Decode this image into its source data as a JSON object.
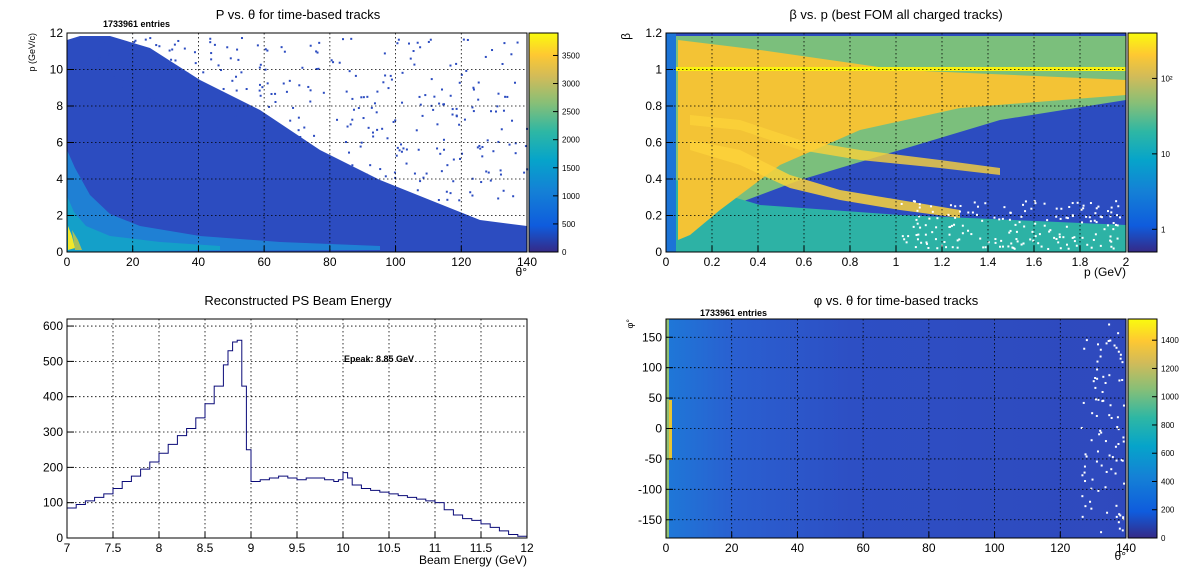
{
  "chart_data": [
    {
      "type": "heatmap",
      "title": "P vs. θ for time-based tracks",
      "xlabel": "θ°",
      "ylabel": "p (GeV/c)",
      "xlim": [
        0,
        140
      ],
      "ylim": [
        0,
        12
      ],
      "xticks": [
        0,
        20,
        40,
        60,
        80,
        100,
        120,
        140
      ],
      "yticks": [
        0,
        2,
        4,
        6,
        8,
        10,
        12
      ],
      "entries_label": "1733961 entries",
      "colorbar": {
        "range": [
          0,
          3900
        ],
        "ticks": [
          0,
          500,
          1000,
          1500,
          2000,
          2500,
          3000,
          3500
        ],
        "scale": "linear"
      },
      "grid": true
    },
    {
      "type": "heatmap",
      "title": "β vs. p (best FOM all charged tracks)",
      "xlabel": "p (GeV)",
      "ylabel": "β",
      "xlim": [
        0,
        2
      ],
      "ylim": [
        0,
        1.2
      ],
      "xticks": [
        0,
        0.2,
        0.4,
        0.6,
        0.8,
        1,
        1.2,
        1.4,
        1.6,
        1.8,
        2
      ],
      "yticks": [
        0,
        0.2,
        0.4,
        0.6,
        0.8,
        1,
        1.2
      ],
      "colorbar": {
        "range": [
          0.5,
          400
        ],
        "ticks": [
          "1",
          "10",
          "10²"
        ],
        "tick_values": [
          1,
          10,
          100
        ],
        "scale": "log"
      },
      "grid": true
    },
    {
      "type": "line",
      "title": "Reconstructed PS Beam Energy",
      "xlabel": "Beam Energy (GeV)",
      "ylabel": "",
      "xlim": [
        7,
        12
      ],
      "ylim": [
        0,
        620
      ],
      "xticks": [
        7,
        7.5,
        8,
        8.5,
        9,
        9.5,
        10,
        10.5,
        11,
        11.5,
        12
      ],
      "yticks": [
        0,
        100,
        200,
        300,
        400,
        500,
        600
      ],
      "annotation": "Epeak: 8.85 GeV",
      "series": [
        {
          "color": "#0a0a78",
          "x": [
            7.0,
            7.1,
            7.2,
            7.3,
            7.4,
            7.5,
            7.6,
            7.7,
            7.8,
            7.9,
            8.0,
            8.1,
            8.2,
            8.3,
            8.4,
            8.5,
            8.6,
            8.7,
            8.75,
            8.8,
            8.85,
            8.9,
            8.95,
            9.0,
            9.1,
            9.2,
            9.3,
            9.4,
            9.5,
            9.6,
            9.7,
            9.8,
            9.9,
            9.95,
            10.0,
            10.05,
            10.1,
            10.2,
            10.3,
            10.4,
            10.5,
            10.6,
            10.7,
            10.8,
            10.9,
            11.0,
            11.1,
            11.2,
            11.3,
            11.4,
            11.5,
            11.6,
            11.7,
            11.8,
            11.9,
            12.0
          ],
          "y": [
            85,
            95,
            105,
            115,
            125,
            140,
            160,
            175,
            195,
            215,
            240,
            265,
            290,
            310,
            340,
            380,
            430,
            490,
            530,
            555,
            560,
            430,
            250,
            160,
            165,
            170,
            175,
            170,
            165,
            170,
            170,
            165,
            160,
            165,
            185,
            170,
            150,
            140,
            135,
            130,
            125,
            120,
            115,
            110,
            105,
            100,
            80,
            65,
            55,
            50,
            40,
            30,
            20,
            10,
            5,
            3
          ]
        }
      ],
      "grid": true
    },
    {
      "type": "heatmap",
      "title": "φ vs. θ for time-based tracks",
      "xlabel": "θ°",
      "ylabel": "φ°",
      "xlim": [
        0,
        140
      ],
      "ylim": [
        -180,
        180
      ],
      "xticks": [
        0,
        20,
        40,
        60,
        80,
        100,
        120,
        140
      ],
      "yticks": [
        -150,
        -100,
        -50,
        0,
        50,
        100,
        150
      ],
      "entries_label": "1733961 entries",
      "colorbar": {
        "range": [
          0,
          1550
        ],
        "ticks": [
          0,
          200,
          400,
          600,
          800,
          1000,
          1200,
          1400
        ],
        "scale": "linear"
      },
      "grid": true
    }
  ]
}
